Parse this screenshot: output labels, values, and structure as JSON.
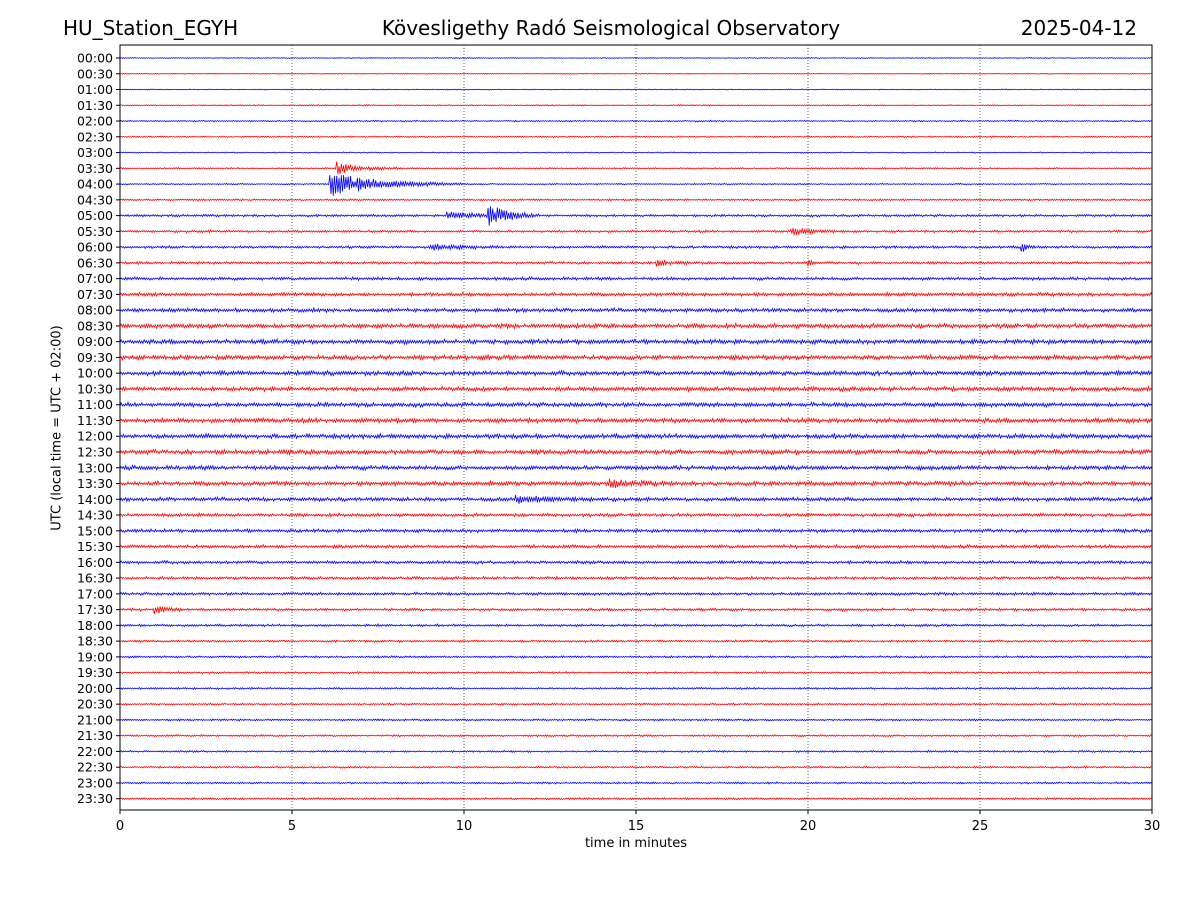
{
  "header": {
    "station": "HU_Station_EGYH",
    "observatory": "Kövesligethy Radó Seismological Observatory",
    "date": "2025-04-12"
  },
  "chart_data": {
    "type": "line",
    "title": "Kövesligethy Radó Seismological Observatory",
    "xlabel": "time in minutes",
    "ylabel": "UTC (local time = UTC + 02:00)",
    "xlim": [
      0,
      30
    ],
    "xticks": [
      0,
      5,
      10,
      15,
      20,
      25,
      30
    ],
    "grid": "vertical dotted at x ticks",
    "row_labels": [
      "00:00",
      "00:30",
      "01:00",
      "01:30",
      "02:00",
      "02:30",
      "03:00",
      "03:30",
      "04:00",
      "04:30",
      "05:00",
      "05:30",
      "06:00",
      "06:30",
      "07:00",
      "07:30",
      "08:00",
      "08:30",
      "09:00",
      "09:30",
      "10:00",
      "10:30",
      "11:00",
      "11:30",
      "12:00",
      "12:30",
      "13:00",
      "13:30",
      "14:00",
      "14:30",
      "15:00",
      "15:30",
      "16:00",
      "16:30",
      "17:00",
      "17:30",
      "18:00",
      "18:30",
      "19:00",
      "19:30",
      "20:00",
      "20:30",
      "21:00",
      "21:30",
      "22:00",
      "22:30",
      "23:00",
      "23:30"
    ],
    "row_colors": [
      "#0000ff",
      "#ff0000"
    ],
    "noise_level": [
      0.4,
      0.4,
      0.4,
      0.5,
      0.6,
      0.6,
      0.5,
      0.6,
      0.6,
      0.8,
      1.0,
      1.0,
      1.1,
      1.1,
      1.3,
      1.5,
      1.6,
      1.9,
      1.9,
      1.9,
      1.9,
      1.8,
      1.8,
      1.9,
      1.9,
      1.9,
      1.8,
      1.8,
      1.6,
      1.4,
      1.4,
      1.4,
      1.3,
      1.2,
      1.2,
      1.1,
      1.0,
      0.9,
      0.9,
      0.8,
      0.8,
      0.8,
      0.8,
      0.8,
      0.8,
      0.8,
      0.8,
      0.8
    ],
    "events": [
      {
        "row": 7,
        "t": 6.3,
        "amp": 6,
        "dur": 2.0
      },
      {
        "row": 8,
        "t": 6.1,
        "amp": 12,
        "dur": 4.0
      },
      {
        "row": 10,
        "t": 10.7,
        "amp": 11,
        "dur": 1.5
      },
      {
        "row": 10,
        "t": 9.5,
        "amp": 3,
        "dur": 3.0
      },
      {
        "row": 11,
        "t": 19.5,
        "amp": 3,
        "dur": 2.0
      },
      {
        "row": 12,
        "t": 26.2,
        "amp": 6,
        "dur": 0.4
      },
      {
        "row": 12,
        "t": 9.0,
        "amp": 3,
        "dur": 2.0
      },
      {
        "row": 13,
        "t": 20.0,
        "amp": 5,
        "dur": 0.3
      },
      {
        "row": 13,
        "t": 15.6,
        "amp": 3,
        "dur": 1.0
      },
      {
        "row": 27,
        "t": 14.2,
        "amp": 3,
        "dur": 2.0
      },
      {
        "row": 28,
        "t": 11.5,
        "amp": 3,
        "dur": 3.0
      },
      {
        "row": 35,
        "t": 1.0,
        "amp": 4,
        "dur": 1.0
      }
    ]
  }
}
